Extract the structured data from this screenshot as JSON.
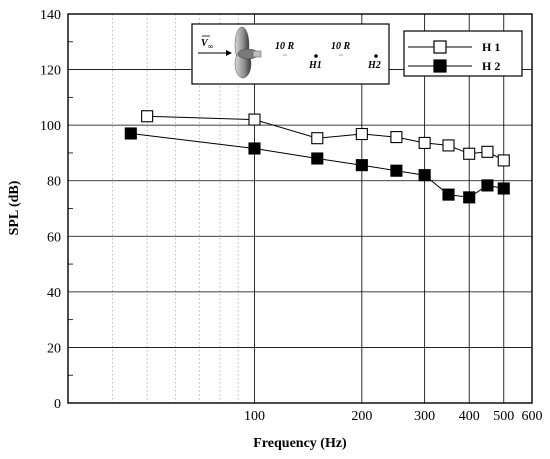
{
  "chart_data": {
    "type": "line",
    "xlabel": "Frequency (Hz)",
    "ylabel": "SPL (dB)",
    "x_scale": "log",
    "xlim": [
      30,
      600
    ],
    "ylim": [
      0,
      140
    ],
    "x_tick_labels": [
      "100",
      "200",
      "300",
      "400",
      "500",
      "600"
    ],
    "x_ticks": [
      100,
      200,
      300,
      400,
      500,
      600
    ],
    "y_ticks": [
      0,
      20,
      40,
      60,
      80,
      100,
      120,
      140
    ],
    "y_tick_labels": [
      "0",
      "20",
      "40",
      "60",
      "80",
      "100",
      "120",
      "140"
    ],
    "grid": true,
    "legend_position": "top-right",
    "series": [
      {
        "name": "H 1",
        "marker": "open-square",
        "x": [
          50,
          100,
          150,
          200,
          250,
          300,
          350,
          400,
          450,
          500
        ],
        "y": [
          103.2,
          102.0,
          95.3,
          96.8,
          95.7,
          93.6,
          92.7,
          89.7,
          90.4,
          87.3
        ]
      },
      {
        "name": "H 2",
        "marker": "filled-square",
        "x": [
          45,
          100,
          150,
          200,
          250,
          300,
          350,
          400,
          450,
          500
        ],
        "y": [
          97.0,
          91.6,
          88.0,
          85.6,
          83.6,
          82.0,
          75.0,
          74.0,
          78.3,
          77.2
        ]
      }
    ],
    "inset": {
      "labels": [
        "10 R",
        "10 R",
        "H1",
        "H2"
      ],
      "velocity_symbol": "V",
      "velocity_subscript": "∞"
    },
    "colors": {
      "line": "#000000",
      "open_marker_fill": "#ffffff",
      "filled_marker_fill": "#000000"
    }
  }
}
